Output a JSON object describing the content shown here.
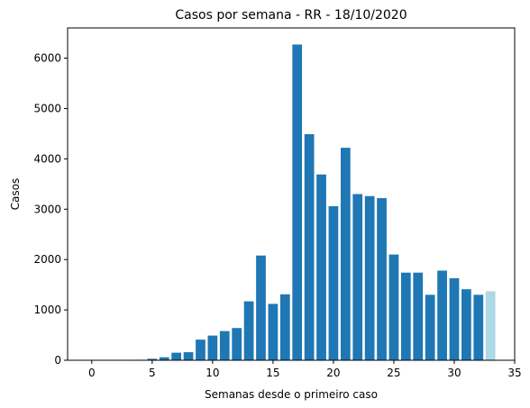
{
  "chart_data": {
    "type": "bar",
    "title": "Casos por semana - RR - 18/10/2020",
    "xlabel": "Semanas desde o primeiro caso",
    "ylabel": "Casos",
    "xlim": [
      -2.0,
      35.0
    ],
    "ylim": [
      0,
      6600
    ],
    "xticks": [
      0,
      5,
      10,
      15,
      20,
      25,
      30,
      35
    ],
    "yticks": [
      0,
      1000,
      2000,
      3000,
      4000,
      5000,
      6000
    ],
    "grid": false,
    "colors": {
      "bar": "#1f77b4",
      "last_bar": "#add8e6"
    },
    "x": [
      0,
      1,
      2,
      3,
      4,
      5,
      6,
      7,
      8,
      9,
      10,
      11,
      12,
      13,
      14,
      15,
      16,
      17,
      18,
      19,
      20,
      21,
      22,
      23,
      24,
      25,
      26,
      27,
      28,
      29,
      30,
      31,
      32,
      33
    ],
    "values": [
      1,
      2,
      3,
      5,
      10,
      30,
      60,
      150,
      160,
      410,
      490,
      580,
      640,
      1170,
      2080,
      1120,
      1310,
      6270,
      4490,
      3690,
      3060,
      4220,
      3300,
      3260,
      3220,
      2100,
      1740,
      1740,
      1300,
      1780,
      1630,
      1410,
      1300,
      1370
    ],
    "highlight_last": true
  }
}
